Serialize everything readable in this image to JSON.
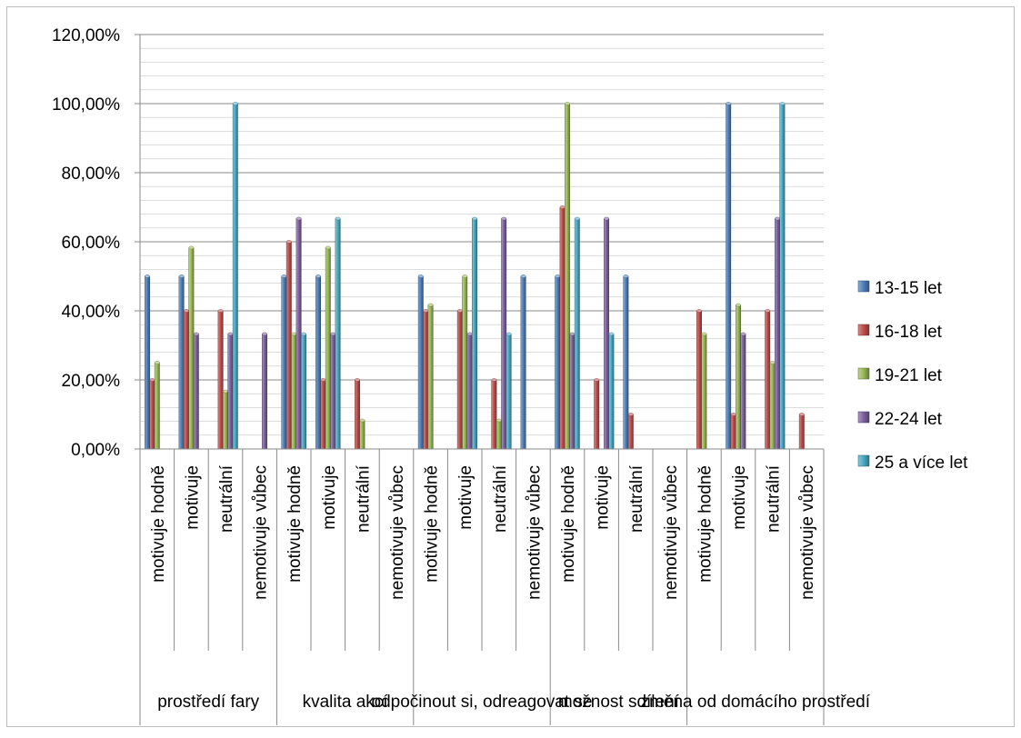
{
  "chart_data": {
    "type": "bar",
    "title": "",
    "xlabel": "",
    "ylabel": "",
    "ylim": [
      0,
      1.2
    ],
    "y_tick_labels": [
      "0,00%",
      "20,00%",
      "40,00%",
      "60,00%",
      "80,00%",
      "100,00%",
      "120,00%"
    ],
    "grid": true,
    "legend_position": "right",
    "group_labels": [
      "prostředí fary",
      "kvalita akcí",
      "odpočinout si, odreagovat se",
      "možnost sdílení",
      "změna od domácího prostředí"
    ],
    "categories": [
      "motivuje hodně",
      "motivuje",
      "neutrální",
      "nemotivuje vůbec",
      "motivuje hodně",
      "motivuje",
      "neutrální",
      "nemotivuje vůbec",
      "motivuje hodně",
      "motivuje",
      "neutrální",
      "nemotivuje vůbec",
      "motivuje hodně",
      "motivuje",
      "neutrální",
      "nemotivuje vůbec",
      "motivuje hodně",
      "motivuje",
      "neutrální",
      "nemotivuje vůbec"
    ],
    "series": [
      {
        "name": "13-15 let",
        "color": "#4F81BD",
        "values": [
          0.5,
          0.5,
          0,
          0,
          0.5,
          0.5,
          0,
          0,
          0.5,
          0,
          0,
          0.5,
          0.5,
          0,
          0.5,
          0,
          0,
          1.0,
          0,
          0
        ]
      },
      {
        "name": "16-18 let",
        "color": "#C0504D",
        "values": [
          0.2,
          0.4,
          0.4,
          0,
          0.6,
          0.2,
          0.2,
          0,
          0.4,
          0.4,
          0.2,
          0,
          0.7,
          0.2,
          0.1,
          0,
          0.4,
          0.1,
          0.4,
          0.1
        ]
      },
      {
        "name": "19-21 let",
        "color": "#9BBB59",
        "values": [
          0.25,
          0.583,
          0.167,
          0,
          0.333,
          0.583,
          0.083,
          0,
          0.417,
          0.5,
          0.083,
          0,
          1.0,
          0,
          0,
          0,
          0.333,
          0.417,
          0.25,
          0
        ]
      },
      {
        "name": "22-24 let",
        "color": "#8064A2",
        "values": [
          0,
          0.333,
          0.333,
          0.333,
          0.667,
          0.333,
          0,
          0,
          0,
          0.333,
          0.667,
          0,
          0.333,
          0.667,
          0,
          0,
          0,
          0.333,
          0.667,
          0
        ]
      },
      {
        "name": "25 a více let",
        "color": "#4BACC6",
        "values": [
          0,
          0,
          1.0,
          0,
          0.333,
          0.667,
          0,
          0,
          0,
          0.667,
          0.333,
          0,
          0.667,
          0.333,
          0,
          0,
          0,
          0,
          1.0,
          0
        ]
      }
    ]
  }
}
